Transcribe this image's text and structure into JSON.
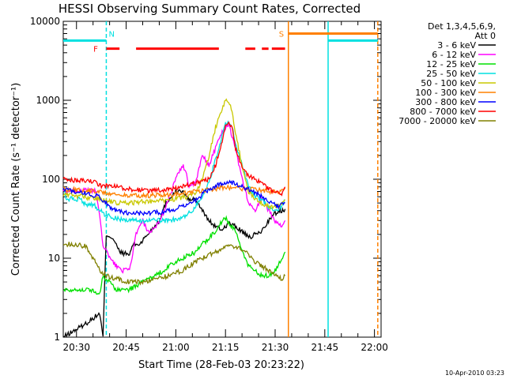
{
  "chart_data": {
    "type": "line",
    "title": "HESSI Observing Summary Count Rates, Corrected",
    "xlabel": "Start Time (28-Feb-03 20:23:22)",
    "ylabel": "Corrected Count Rate (s⁻¹ detector⁻¹)",
    "y_scale": "log",
    "ylim": [
      1,
      10000
    ],
    "xlim_minutes": [
      26,
      122
    ],
    "x_tick_labels": [
      "20:30",
      "20:45",
      "21:00",
      "21:15",
      "21:30",
      "21:45",
      "22:00"
    ],
    "x_tick_minutes": [
      30,
      45,
      60,
      75,
      90,
      105,
      120
    ],
    "y_tick_labels": [
      "1",
      "10",
      "100",
      "1000",
      "10000"
    ],
    "legend_header": [
      "Det 1,3,4,5,6,9,",
      "Att 0"
    ],
    "legend_position": "right",
    "footer_date": "10-Apr-2010 03:23",
    "series": [
      {
        "name": "3 - 6 keV",
        "color": "#000000",
        "points": [
          [
            26,
            1
          ],
          [
            33,
            1.5
          ],
          [
            37,
            2
          ],
          [
            38,
            1
          ],
          [
            39,
            20
          ],
          [
            41,
            18
          ],
          [
            43,
            12
          ],
          [
            46,
            11
          ],
          [
            47,
            15
          ],
          [
            49,
            15
          ],
          [
            55,
            30
          ],
          [
            57,
            50
          ],
          [
            60,
            70
          ],
          [
            62,
            70
          ],
          [
            64,
            55
          ],
          [
            66,
            55
          ],
          [
            68,
            40
          ],
          [
            70,
            30
          ],
          [
            72,
            25
          ],
          [
            74,
            23
          ],
          [
            76,
            28
          ],
          [
            78,
            25
          ],
          [
            80,
            22
          ],
          [
            82,
            18
          ],
          [
            84,
            20
          ],
          [
            86,
            22
          ],
          [
            88,
            30
          ],
          [
            90,
            37
          ],
          [
            92,
            40
          ],
          [
            93,
            42
          ]
        ]
      },
      {
        "name": "6 - 12 keV",
        "color": "#ff00ff",
        "points": [
          [
            26,
            70
          ],
          [
            30,
            72
          ],
          [
            34,
            72
          ],
          [
            36,
            70
          ],
          [
            38,
            15
          ],
          [
            40,
            10
          ],
          [
            42,
            8
          ],
          [
            44,
            7
          ],
          [
            46,
            7
          ],
          [
            48,
            20
          ],
          [
            50,
            30
          ],
          [
            52,
            20
          ],
          [
            54,
            25
          ],
          [
            56,
            35
          ],
          [
            58,
            60
          ],
          [
            60,
            100
          ],
          [
            62,
            150
          ],
          [
            63,
            130
          ],
          [
            64,
            80
          ],
          [
            66,
            90
          ],
          [
            68,
            200
          ],
          [
            70,
            150
          ],
          [
            72,
            250
          ],
          [
            74,
            400
          ],
          [
            76,
            500
          ],
          [
            78,
            250
          ],
          [
            80,
            100
          ],
          [
            82,
            50
          ],
          [
            84,
            40
          ],
          [
            86,
            60
          ],
          [
            88,
            40
          ],
          [
            90,
            30
          ],
          [
            92,
            25
          ],
          [
            93,
            30
          ]
        ]
      },
      {
        "name": "12 - 25 keV",
        "color": "#00e000",
        "points": [
          [
            26,
            4
          ],
          [
            30,
            4
          ],
          [
            34,
            4
          ],
          [
            37,
            3.5
          ],
          [
            38,
            6
          ],
          [
            42,
            4
          ],
          [
            46,
            4
          ],
          [
            50,
            5
          ],
          [
            54,
            6
          ],
          [
            58,
            8
          ],
          [
            62,
            10
          ],
          [
            66,
            12
          ],
          [
            68,
            15
          ],
          [
            70,
            18
          ],
          [
            72,
            22
          ],
          [
            74,
            30
          ],
          [
            75,
            32
          ],
          [
            76,
            28
          ],
          [
            78,
            22
          ],
          [
            80,
            12
          ],
          [
            82,
            8
          ],
          [
            84,
            7
          ],
          [
            86,
            6
          ],
          [
            88,
            6
          ],
          [
            90,
            7
          ],
          [
            92,
            10
          ],
          [
            93,
            12
          ]
        ]
      },
      {
        "name": "25 - 50 keV",
        "color": "#00e0e0",
        "points": [
          [
            26,
            80
          ],
          [
            27,
            55
          ],
          [
            29,
            58
          ],
          [
            31,
            55
          ],
          [
            33,
            48
          ],
          [
            35,
            48
          ],
          [
            37,
            40
          ],
          [
            39,
            35
          ],
          [
            42,
            32
          ],
          [
            46,
            30
          ],
          [
            50,
            30
          ],
          [
            54,
            30
          ],
          [
            58,
            30
          ],
          [
            62,
            32
          ],
          [
            65,
            40
          ],
          [
            68,
            60
          ],
          [
            70,
            90
          ],
          [
            72,
            180
          ],
          [
            74,
            350
          ],
          [
            75,
            500
          ],
          [
            76,
            520
          ],
          [
            77,
            450
          ],
          [
            78,
            300
          ],
          [
            80,
            150
          ],
          [
            82,
            80
          ],
          [
            84,
            60
          ],
          [
            86,
            55
          ],
          [
            88,
            45
          ],
          [
            90,
            40
          ],
          [
            92,
            45
          ],
          [
            93,
            55
          ]
        ]
      },
      {
        "name": "50 - 100 keV",
        "color": "#c8c800",
        "points": [
          [
            26,
            65
          ],
          [
            30,
            62
          ],
          [
            34,
            58
          ],
          [
            38,
            55
          ],
          [
            42,
            50
          ],
          [
            46,
            50
          ],
          [
            50,
            52
          ],
          [
            54,
            53
          ],
          [
            58,
            55
          ],
          [
            62,
            58
          ],
          [
            66,
            65
          ],
          [
            68,
            100
          ],
          [
            70,
            200
          ],
          [
            72,
            450
          ],
          [
            74,
            800
          ],
          [
            75,
            1000
          ],
          [
            76,
            950
          ],
          [
            77,
            700
          ],
          [
            78,
            400
          ],
          [
            80,
            150
          ],
          [
            82,
            70
          ],
          [
            84,
            55
          ],
          [
            86,
            50
          ],
          [
            88,
            45
          ],
          [
            90,
            45
          ],
          [
            92,
            48
          ],
          [
            93,
            55
          ]
        ]
      },
      {
        "name": "100 - 300 keV",
        "color": "#ff8000",
        "points": [
          [
            26,
            75
          ],
          [
            30,
            74
          ],
          [
            34,
            72
          ],
          [
            38,
            68
          ],
          [
            42,
            64
          ],
          [
            46,
            62
          ],
          [
            50,
            62
          ],
          [
            54,
            63
          ],
          [
            58,
            64
          ],
          [
            62,
            66
          ],
          [
            66,
            70
          ],
          [
            70,
            74
          ],
          [
            74,
            78
          ],
          [
            76,
            79
          ],
          [
            78,
            78
          ],
          [
            82,
            75
          ],
          [
            86,
            72
          ],
          [
            88,
            70
          ],
          [
            90,
            68
          ],
          [
            92,
            70
          ],
          [
            93,
            78
          ]
        ]
      },
      {
        "name": "300 - 800 keV",
        "color": "#0000ff",
        "points": [
          [
            26,
            75
          ],
          [
            30,
            70
          ],
          [
            34,
            65
          ],
          [
            37,
            60
          ],
          [
            39,
            50
          ],
          [
            41,
            42
          ],
          [
            44,
            38
          ],
          [
            47,
            37
          ],
          [
            50,
            37
          ],
          [
            54,
            38
          ],
          [
            58,
            40
          ],
          [
            62,
            45
          ],
          [
            66,
            55
          ],
          [
            70,
            75
          ],
          [
            74,
            90
          ],
          [
            76,
            92
          ],
          [
            78,
            88
          ],
          [
            82,
            75
          ],
          [
            86,
            60
          ],
          [
            89,
            50
          ],
          [
            91,
            45
          ],
          [
            93,
            50
          ]
        ]
      },
      {
        "name": "800 - 7000 keV",
        "color": "#ff0000",
        "points": [
          [
            26,
            100
          ],
          [
            30,
            96
          ],
          [
            34,
            95
          ],
          [
            36,
            90
          ],
          [
            38,
            80
          ],
          [
            40,
            85
          ],
          [
            42,
            80
          ],
          [
            46,
            75
          ],
          [
            50,
            72
          ],
          [
            54,
            72
          ],
          [
            58,
            75
          ],
          [
            62,
            80
          ],
          [
            66,
            90
          ],
          [
            70,
            100
          ],
          [
            72,
            150
          ],
          [
            74,
            300
          ],
          [
            75,
            480
          ],
          [
            76,
            500
          ],
          [
            77,
            460
          ],
          [
            78,
            250
          ],
          [
            80,
            140
          ],
          [
            82,
            110
          ],
          [
            84,
            100
          ],
          [
            86,
            90
          ],
          [
            88,
            75
          ],
          [
            90,
            68
          ],
          [
            92,
            65
          ],
          [
            93,
            80
          ]
        ]
      },
      {
        "name": "7000 - 20000 keV",
        "color": "#808000",
        "points": [
          [
            26,
            15
          ],
          [
            30,
            15
          ],
          [
            33,
            14
          ],
          [
            35,
            10
          ],
          [
            37,
            7
          ],
          [
            39,
            6
          ],
          [
            42,
            5.5
          ],
          [
            46,
            5
          ],
          [
            50,
            5
          ],
          [
            54,
            5.5
          ],
          [
            58,
            6
          ],
          [
            62,
            7
          ],
          [
            66,
            9
          ],
          [
            70,
            11
          ],
          [
            74,
            13
          ],
          [
            76,
            14
          ],
          [
            78,
            14
          ],
          [
            80,
            13
          ],
          [
            82,
            11
          ],
          [
            84,
            9
          ],
          [
            86,
            8
          ],
          [
            88,
            7
          ],
          [
            90,
            6
          ],
          [
            92,
            5.5
          ],
          [
            93,
            6
          ]
        ]
      }
    ],
    "annotations": [
      {
        "label": "N",
        "color": "#00e0e0",
        "x_minute": 39
      },
      {
        "label": "F",
        "color": "#ff0000",
        "x_minute": 37
      },
      {
        "label": "S",
        "color": "#ff8000",
        "x_minute": 94
      }
    ],
    "status_bars": [
      {
        "kind": "night",
        "color": "#00e0e0",
        "y": 5700,
        "segments": [
          [
            26,
            39
          ],
          [
            106,
            121
          ]
        ]
      },
      {
        "kind": "flare",
        "color": "#ff0000",
        "y": 4500,
        "segments": [
          [
            39,
            43
          ],
          [
            48,
            73
          ],
          [
            81,
            84
          ],
          [
            86,
            88
          ],
          [
            89,
            93
          ]
        ]
      },
      {
        "kind": "saa",
        "color": "#ff8000",
        "y": 7000,
        "segments": [
          [
            94,
            121
          ]
        ]
      }
    ],
    "vlines": [
      {
        "color": "#00e0e0",
        "x_minute": 39,
        "dashed": true
      },
      {
        "color": "#00e0e0",
        "x_minute": 106,
        "dashed": false
      },
      {
        "color": "#ff8000",
        "x_minute": 94,
        "dashed": false
      },
      {
        "color": "#ff8000",
        "x_minute": 121,
        "dashed": true
      }
    ]
  }
}
